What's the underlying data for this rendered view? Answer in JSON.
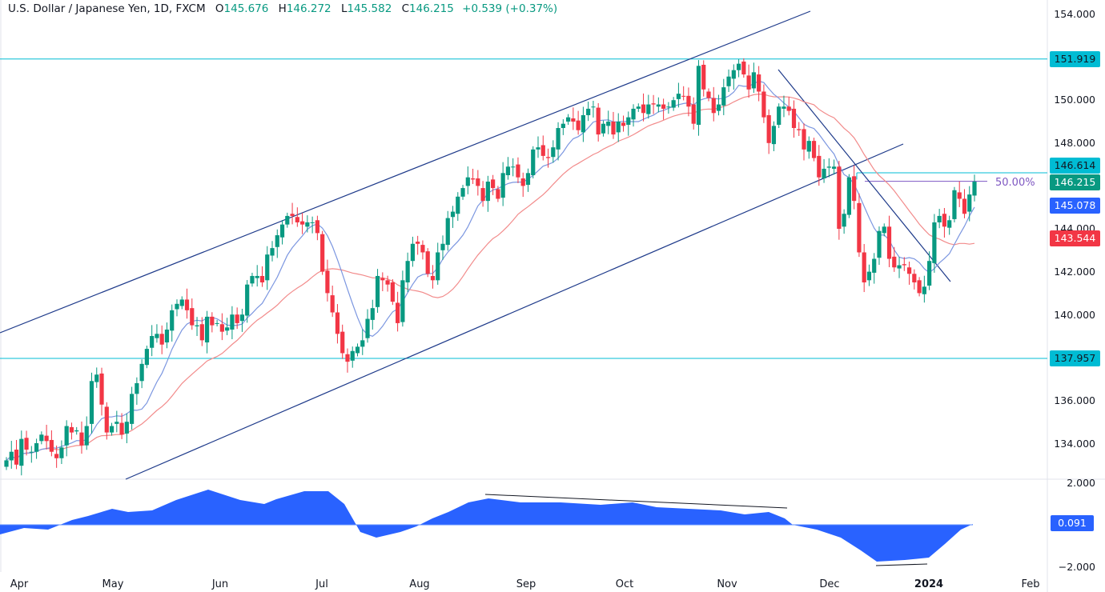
{
  "header": {
    "symbol": "U.S. Dollar / Japanese Yen, 1D, FXCM",
    "open_label": "O",
    "open": "145.676",
    "high_label": "H",
    "high": "146.272",
    "low_label": "L",
    "low": "145.582",
    "close_label": "C",
    "close": "146.215",
    "change": "+0.539 (+0.37%)"
  },
  "colors": {
    "up": "#089981",
    "down": "#f23645",
    "channel": "#1e3a8a",
    "hline": "#00bcd4",
    "ma_fast": "#7b96e0",
    "ma_slow": "#f28b8b",
    "oscillator": "#2962ff",
    "fib": "#7e57c2"
  },
  "price_axis": {
    "ticks": [
      "154.000",
      "150.000",
      "148.000",
      "144.000",
      "142.000",
      "140.000",
      "136.000",
      "134.000"
    ],
    "tags": [
      {
        "value": "151.919",
        "bg": "#00bcd4",
        "fg": "#131722"
      },
      {
        "value": "146.614",
        "bg": "#00bcd4",
        "fg": "#131722"
      },
      {
        "value": "146.215",
        "bg": "#089981",
        "fg": "#ffffff"
      },
      {
        "value": "145.078",
        "bg": "#2962ff",
        "fg": "#ffffff"
      },
      {
        "value": "143.544",
        "bg": "#f23645",
        "fg": "#ffffff"
      },
      {
        "value": "137.957",
        "bg": "#00bcd4",
        "fg": "#131722"
      }
    ]
  },
  "osc_axis": {
    "ticks": [
      "2.000",
      "−2.000"
    ],
    "tag": {
      "value": "0.091",
      "bg": "#2962ff",
      "fg": "#ffffff"
    }
  },
  "time_axis": [
    "Apr",
    "May",
    "Jun",
    "Jul",
    "Aug",
    "Sep",
    "Oct",
    "Nov",
    "Dec",
    "2024",
    "Feb"
  ],
  "fib_label": "50.00%",
  "chart_data": {
    "type": "candlestick",
    "title": "U.S. Dollar / Japanese Yen, 1D, FXCM",
    "ylim": [
      133.5,
      154.5
    ],
    "horizontal_levels": [
      151.919,
      146.614,
      137.957
    ],
    "fib_level": {
      "label": "50.00%",
      "value": 146.215
    },
    "indicators": {
      "ma_fast_last": 145.078,
      "ma_slow_last": 143.544,
      "oscillator_last": 0.091,
      "oscillator_range": [
        -2,
        2
      ]
    },
    "monthly_closes_approx": {
      "Apr": 133.8,
      "May": 139.3,
      "Jun": 144.3,
      "Jul": 142.3,
      "Aug": 145.5,
      "Sep": 149.3,
      "Oct": 151.7,
      "Nov": 148.1,
      "Dec": 141.0,
      "Jan": 146.2
    },
    "closes": [
      133.2,
      133.6,
      133.0,
      134.2,
      133.7,
      133.6,
      134.0,
      134.4,
      134.1,
      133.6,
      133.3,
      133.8,
      134.8,
      134.5,
      134.6,
      133.9,
      134.8,
      136.9,
      137.2,
      135.8,
      134.5,
      134.8,
      135.0,
      134.4,
      135.0,
      136.3,
      136.8,
      137.7,
      138.4,
      139.0,
      139.1,
      138.6,
      139.3,
      140.2,
      140.5,
      140.7,
      140.2,
      139.5,
      139.5,
      138.8,
      139.9,
      139.5,
      139.6,
      139.2,
      139.4,
      140.0,
      139.6,
      140.0,
      141.4,
      141.8,
      141.8,
      141.5,
      142.8,
      143.1,
      143.7,
      144.2,
      144.6,
      144.6,
      144.3,
      144.2,
      144.3,
      144.3,
      143.8,
      142.0,
      141.0,
      140.1,
      139.1,
      138.2,
      137.8,
      138.3,
      138.5,
      138.8,
      139.8,
      140.3,
      141.8,
      141.6,
      141.4,
      140.6,
      139.6,
      141.6,
      142.5,
      143.3,
      143.3,
      142.9,
      141.9,
      141.6,
      142.9,
      143.3,
      144.5,
      144.8,
      145.5,
      145.9,
      146.4,
      146.3,
      146.0,
      145.3,
      146.2,
      145.9,
      145.4,
      146.6,
      146.9,
      146.9,
      146.4,
      146.0,
      146.6,
      147.7,
      147.8,
      147.4,
      147.3,
      147.8,
      148.7,
      148.9,
      149.2,
      149.0,
      148.6,
      149.3,
      149.6,
      149.7,
      148.4,
      148.9,
      149.0,
      148.4,
      149.0,
      148.8,
      149.2,
      149.6,
      149.7,
      149.4,
      149.8,
      149.8,
      149.8,
      149.6,
      149.7,
      150.0,
      150.3,
      150.2,
      149.7,
      148.9,
      151.6,
      150.5,
      150.1,
      149.4,
      149.8,
      150.6,
      151.1,
      151.4,
      151.7,
      151.2,
      150.5,
      151.3,
      150.4,
      149.2,
      148.0,
      148.8,
      149.7,
      149.7,
      149.5,
      148.7,
      148.6,
      147.7,
      148.1,
      147.3,
      146.4,
      146.8,
      146.9,
      146.9,
      144.0,
      144.7,
      146.4,
      145.3,
      142.9,
      141.5,
      142.0,
      142.6,
      143.9,
      144.1,
      142.6,
      142.2,
      142.3,
      142.3,
      141.9,
      141.5,
      141.0,
      141.3,
      142.5,
      144.3,
      144.6,
      144.1,
      144.4,
      145.8,
      145.4,
      144.7,
      145.6,
      146.2
    ],
    "xlabel": "",
    "ylabel": ""
  }
}
